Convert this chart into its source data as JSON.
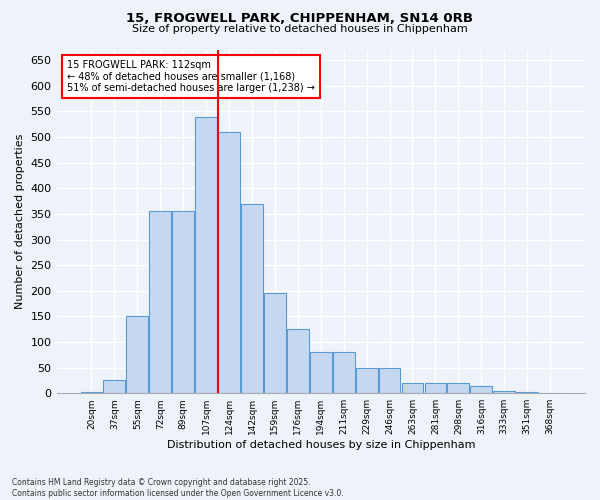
{
  "title_line1": "15, FROGWELL PARK, CHIPPENHAM, SN14 0RB",
  "title_line2": "Size of property relative to detached houses in Chippenham",
  "xlabel": "Distribution of detached houses by size in Chippenham",
  "ylabel": "Number of detached properties",
  "bar_labels": [
    "20sqm",
    "37sqm",
    "55sqm",
    "72sqm",
    "89sqm",
    "107sqm",
    "124sqm",
    "142sqm",
    "159sqm",
    "176sqm",
    "194sqm",
    "211sqm",
    "229sqm",
    "246sqm",
    "263sqm",
    "281sqm",
    "298sqm",
    "316sqm",
    "333sqm",
    "351sqm",
    "368sqm"
  ],
  "bar_values": [
    2,
    25,
    150,
    355,
    355,
    540,
    510,
    370,
    195,
    125,
    80,
    80,
    50,
    50,
    20,
    20,
    20,
    15,
    5,
    2,
    0
  ],
  "bar_color": "#c5d8f0",
  "bar_edge_color": "#5b9bd5",
  "red_line_index": 5.5,
  "annotation_title": "15 FROGWELL PARK: 112sqm",
  "annotation_line1": "← 48% of detached houses are smaller (1,168)",
  "annotation_line2": "51% of semi-detached houses are larger (1,238) →",
  "ylim": [
    0,
    670
  ],
  "yticks": [
    0,
    50,
    100,
    150,
    200,
    250,
    300,
    350,
    400,
    450,
    500,
    550,
    600,
    650
  ],
  "background_color": "#eef2f9",
  "grid_color": "#ffffff",
  "footnote": "Contains HM Land Registry data © Crown copyright and database right 2025.\nContains public sector information licensed under the Open Government Licence v3.0."
}
